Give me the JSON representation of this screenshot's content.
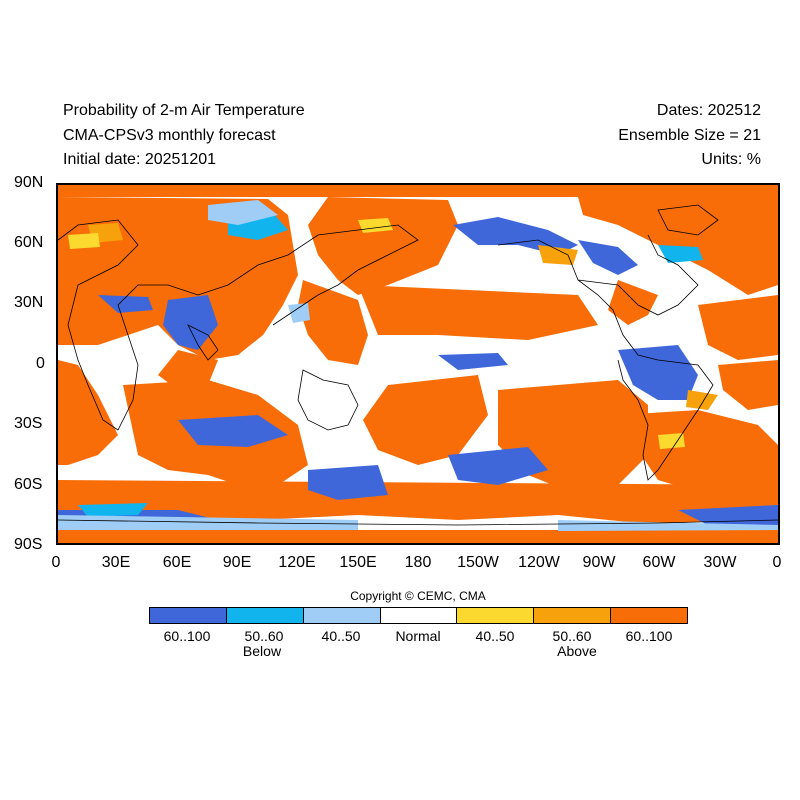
{
  "header": {
    "title": "Probability of 2-m Air Temperature",
    "model": "CMA-CPSv3 monthly forecast",
    "initial_date": "Initial date: 20251201",
    "dates": "Dates: 202512",
    "ensemble": "Ensemble Size = 21",
    "units": "Units: %"
  },
  "axes": {
    "lat_labels": [
      "90N",
      "60N",
      "30N",
      "0",
      "30S",
      "60S",
      "90S"
    ],
    "lon_labels": [
      "0",
      "30E",
      "60E",
      "90E",
      "120E",
      "150E",
      "180",
      "150W",
      "120W",
      "90W",
      "60W",
      "30W",
      "0"
    ]
  },
  "copyright": "Copyright © CEMC, CMA",
  "legend": {
    "categories": [
      {
        "label": "60..100",
        "color": "#3f67da"
      },
      {
        "label": "50..60",
        "color": "#12b4ee"
      },
      {
        "label": "40..50",
        "color": "#9fcdf6"
      },
      {
        "label": "Normal",
        "color": "#ffffff"
      },
      {
        "label": "40..50",
        "color": "#fcd92f"
      },
      {
        "label": "50..60",
        "color": "#f7a20d"
      },
      {
        "label": "60..100",
        "color": "#f86d07"
      }
    ],
    "below": "Below",
    "above": "Above"
  },
  "map": {
    "background_category": "Normal",
    "dominant_category": "Above 60..100",
    "coast_color": "#000000"
  }
}
